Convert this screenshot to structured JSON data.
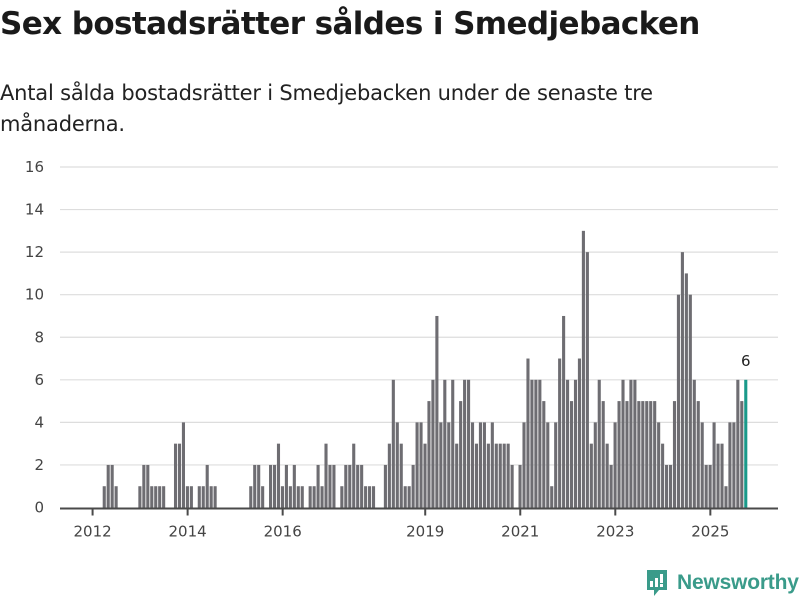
{
  "header": {
    "title": "Sex bostadsrätter såldes i Smedjebacken",
    "subtitle": "Antal sålda bostadsrätter i Smedjebacken under de senaste tre månaderna."
  },
  "brand": {
    "name": "Newsworthy",
    "color": "#3a9b8a",
    "icon": "bar-chart-speech-bubble-icon"
  },
  "colors": {
    "bar": "#6e6d72",
    "highlight": "#1a9a8a",
    "grid": "#dddddd",
    "axis": "#4a4a4a"
  },
  "chart_data": {
    "type": "bar",
    "title": "Sex bostadsrätter såldes i Smedjebacken",
    "subtitle": "Antal sålda bostadsrätter i Smedjebacken under de senaste tre månaderna.",
    "xlabel": "",
    "ylabel": "",
    "ylim": [
      0,
      16
    ],
    "yticks": [
      0,
      2,
      4,
      6,
      8,
      10,
      12,
      14,
      16
    ],
    "grid": true,
    "legend": "none",
    "first_period": "2012-03",
    "frequency": "monthly",
    "xtick_labels": [
      {
        "label": "2012",
        "month_index": -2
      },
      {
        "label": "2014",
        "month_index": 22
      },
      {
        "label": "2016",
        "month_index": 46
      },
      {
        "label": "2019",
        "month_index": 82
      },
      {
        "label": "2021",
        "month_index": 106
      },
      {
        "label": "2023",
        "month_index": 130
      },
      {
        "label": "2025",
        "month_index": 154
      }
    ],
    "values": [
      1,
      2,
      2,
      1,
      0,
      0,
      0,
      0,
      0,
      1,
      2,
      2,
      1,
      1,
      1,
      1,
      0,
      0,
      3,
      3,
      4,
      1,
      1,
      0,
      1,
      1,
      2,
      1,
      1,
      0,
      0,
      0,
      0,
      0,
      0,
      0,
      0,
      1,
      2,
      2,
      1,
      0,
      2,
      2,
      3,
      1,
      2,
      1,
      2,
      1,
      1,
      0,
      1,
      1,
      2,
      1,
      3,
      2,
      2,
      0,
      1,
      2,
      2,
      3,
      2,
      2,
      1,
      1,
      1,
      0,
      0,
      2,
      3,
      6,
      4,
      3,
      1,
      1,
      2,
      4,
      4,
      3,
      5,
      6,
      9,
      4,
      6,
      4,
      6,
      3,
      5,
      6,
      6,
      4,
      3,
      4,
      4,
      3,
      4,
      3,
      3,
      3,
      3,
      2,
      0,
      2,
      4,
      7,
      6,
      6,
      6,
      5,
      4,
      1,
      4,
      7,
      9,
      6,
      5,
      6,
      7,
      13,
      12,
      3,
      4,
      6,
      5,
      3,
      2,
      4,
      5,
      6,
      5,
      6,
      6,
      5,
      5,
      5,
      5,
      5,
      4,
      3,
      2,
      2,
      5,
      10,
      12,
      11,
      10,
      6,
      5,
      4,
      2,
      2,
      4,
      3,
      3,
      1,
      4,
      4,
      6,
      5,
      6
    ],
    "highlight_last": true,
    "annotations": [
      {
        "target": "last",
        "text": "6"
      }
    ]
  }
}
